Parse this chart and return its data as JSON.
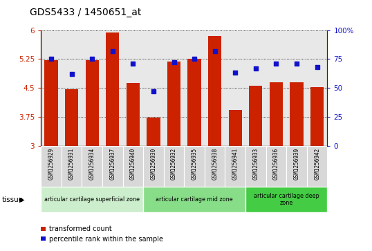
{
  "title": "GDS5433 / 1450651_at",
  "samples": [
    "GSM1256929",
    "GSM1256931",
    "GSM1256934",
    "GSM1256937",
    "GSM1256940",
    "GSM1256930",
    "GSM1256932",
    "GSM1256935",
    "GSM1256938",
    "GSM1256941",
    "GSM1256933",
    "GSM1256936",
    "GSM1256939",
    "GSM1256942"
  ],
  "transformed_count": [
    5.22,
    4.47,
    5.22,
    5.93,
    4.63,
    3.73,
    5.18,
    5.25,
    5.85,
    3.93,
    4.55,
    4.65,
    4.65,
    4.52
  ],
  "percentile_rank": [
    75,
    62,
    75,
    82,
    71,
    47,
    72,
    75,
    82,
    63,
    67,
    71,
    71,
    68
  ],
  "ylim_left": [
    3,
    6
  ],
  "ylim_right": [
    0,
    100
  ],
  "yticks_left": [
    3,
    3.75,
    4.5,
    5.25,
    6
  ],
  "ytick_labels_left": [
    "3",
    "3.75",
    "4.5",
    "5.25",
    "6"
  ],
  "yticks_right": [
    0,
    25,
    50,
    75,
    100
  ],
  "ytick_labels_right": [
    "0",
    "25",
    "50",
    "75",
    "100%"
  ],
  "bar_color": "#cc2200",
  "dot_color": "#1111cc",
  "bg_color": "#e8e8e8",
  "tissue_zones": [
    {
      "label": "articular cartilage superficial zone",
      "start": 0,
      "end": 5,
      "color": "#cceecc"
    },
    {
      "label": "articular cartilage mid zone",
      "start": 5,
      "end": 10,
      "color": "#88dd88"
    },
    {
      "label": "articular cartilage deep\nzone",
      "start": 10,
      "end": 14,
      "color": "#44cc44"
    }
  ],
  "legend_items": [
    {
      "label": "transformed count",
      "color": "#cc2200"
    },
    {
      "label": "percentile rank within the sample",
      "color": "#1111cc"
    }
  ],
  "tissue_label": "tissue",
  "left_axis_color": "#cc2200",
  "right_axis_color": "#1111cc"
}
